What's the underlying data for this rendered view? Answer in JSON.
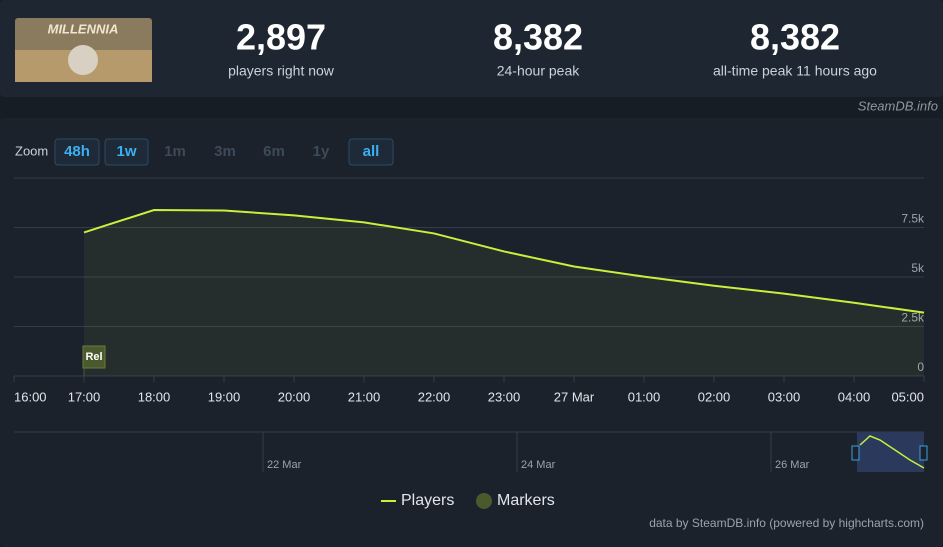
{
  "header": {
    "game_logo": "MILLENNIA",
    "stats": [
      {
        "value": "2,897",
        "label": "players right now"
      },
      {
        "value": "8,382",
        "label": "24-hour peak"
      },
      {
        "value": "8,382",
        "label": "all-time peak 11 hours ago"
      }
    ],
    "source": "SteamDB.info"
  },
  "zoom": {
    "label": "Zoom",
    "buttons": [
      "48h",
      "1w",
      "1m",
      "3m",
      "6m",
      "1y",
      "all"
    ],
    "enabled": [
      true,
      true,
      false,
      false,
      false,
      false,
      true
    ]
  },
  "chart_data": {
    "type": "line",
    "categories": [
      "16:00",
      "17:00",
      "18:00",
      "19:00",
      "20:00",
      "21:00",
      "22:00",
      "23:00",
      "27 Mar",
      "01:00",
      "02:00",
      "03:00",
      "04:00",
      "05:00"
    ],
    "series": [
      {
        "name": "Players",
        "color": "#c8f03c",
        "values": [
          null,
          7250,
          8382,
          8360,
          8110,
          7760,
          7200,
          6290,
          5530,
          5020,
          4560,
          4160,
          3700,
          3200
        ]
      }
    ],
    "ylim": [
      0,
      10000
    ],
    "yticks": [
      0,
      {
        "value": 2500,
        "label": "2.5k"
      },
      {
        "value": 5000,
        "label": "5k"
      },
      {
        "value": 7500,
        "label": "7.5k"
      }
    ],
    "grid": true,
    "markers": {
      "name": "Markers",
      "color": "#4a5a2c",
      "items": [
        {
          "label": "Rel",
          "category": "17:00"
        }
      ]
    },
    "navigator": {
      "labels": [
        "22 Mar",
        "24 Mar",
        "26 Mar"
      ]
    },
    "credits": "data by SteamDB.info (powered by highcharts.com)"
  }
}
